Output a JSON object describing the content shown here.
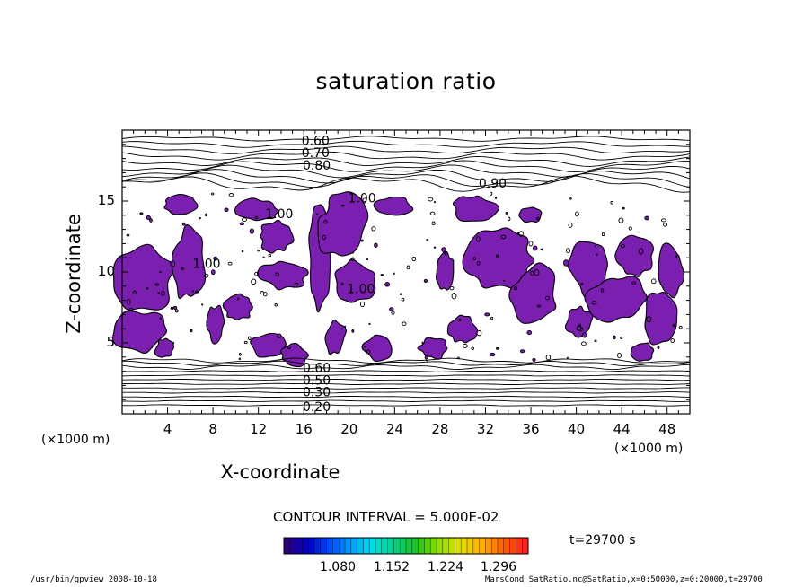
{
  "chart_data": {
    "type": "contour",
    "title": "saturation ratio",
    "xlabel": "X-coordinate",
    "ylabel": "Z-coordinate",
    "x_unit_label": "(×1000 m)",
    "y_unit_label": "(×1000 m)",
    "xlim": [
      0,
      50
    ],
    "ylim": [
      0,
      20
    ],
    "x_ticks": [
      4,
      8,
      12,
      16,
      20,
      24,
      28,
      32,
      36,
      40,
      44,
      48
    ],
    "y_ticks": [
      5,
      10,
      15
    ],
    "contour_interval_label": "CONTOUR INTERVAL = 5.000E-02",
    "contour_labels_upper": [
      "0.60",
      "0.70",
      "0.80",
      "0.90"
    ],
    "contour_labels_interior": [
      "1.00",
      "1.00",
      "1.00",
      "1.00"
    ],
    "contour_labels_lower": [
      "0.60",
      "0.50",
      "0.30",
      "0.20"
    ],
    "shading_color": "#7a1fb0",
    "colorbar": {
      "tick_labels": [
        "1.080",
        "1.152",
        "1.224",
        "1.296"
      ],
      "colors": [
        "#2a0080",
        "#0000c8",
        "#0050ff",
        "#00a0ff",
        "#00e0e0",
        "#00d080",
        "#20c020",
        "#90e000",
        "#e0e000",
        "#ffb000",
        "#ff6000",
        "#ff2020"
      ]
    },
    "time_label": "t=29700 s"
  },
  "footer": {
    "left": "/usr/bin/gpview   2008-10-18",
    "right": "MarsCond_SatRatio.nc@SatRatio,x=0:50000,z=0:20000,t=29700"
  }
}
